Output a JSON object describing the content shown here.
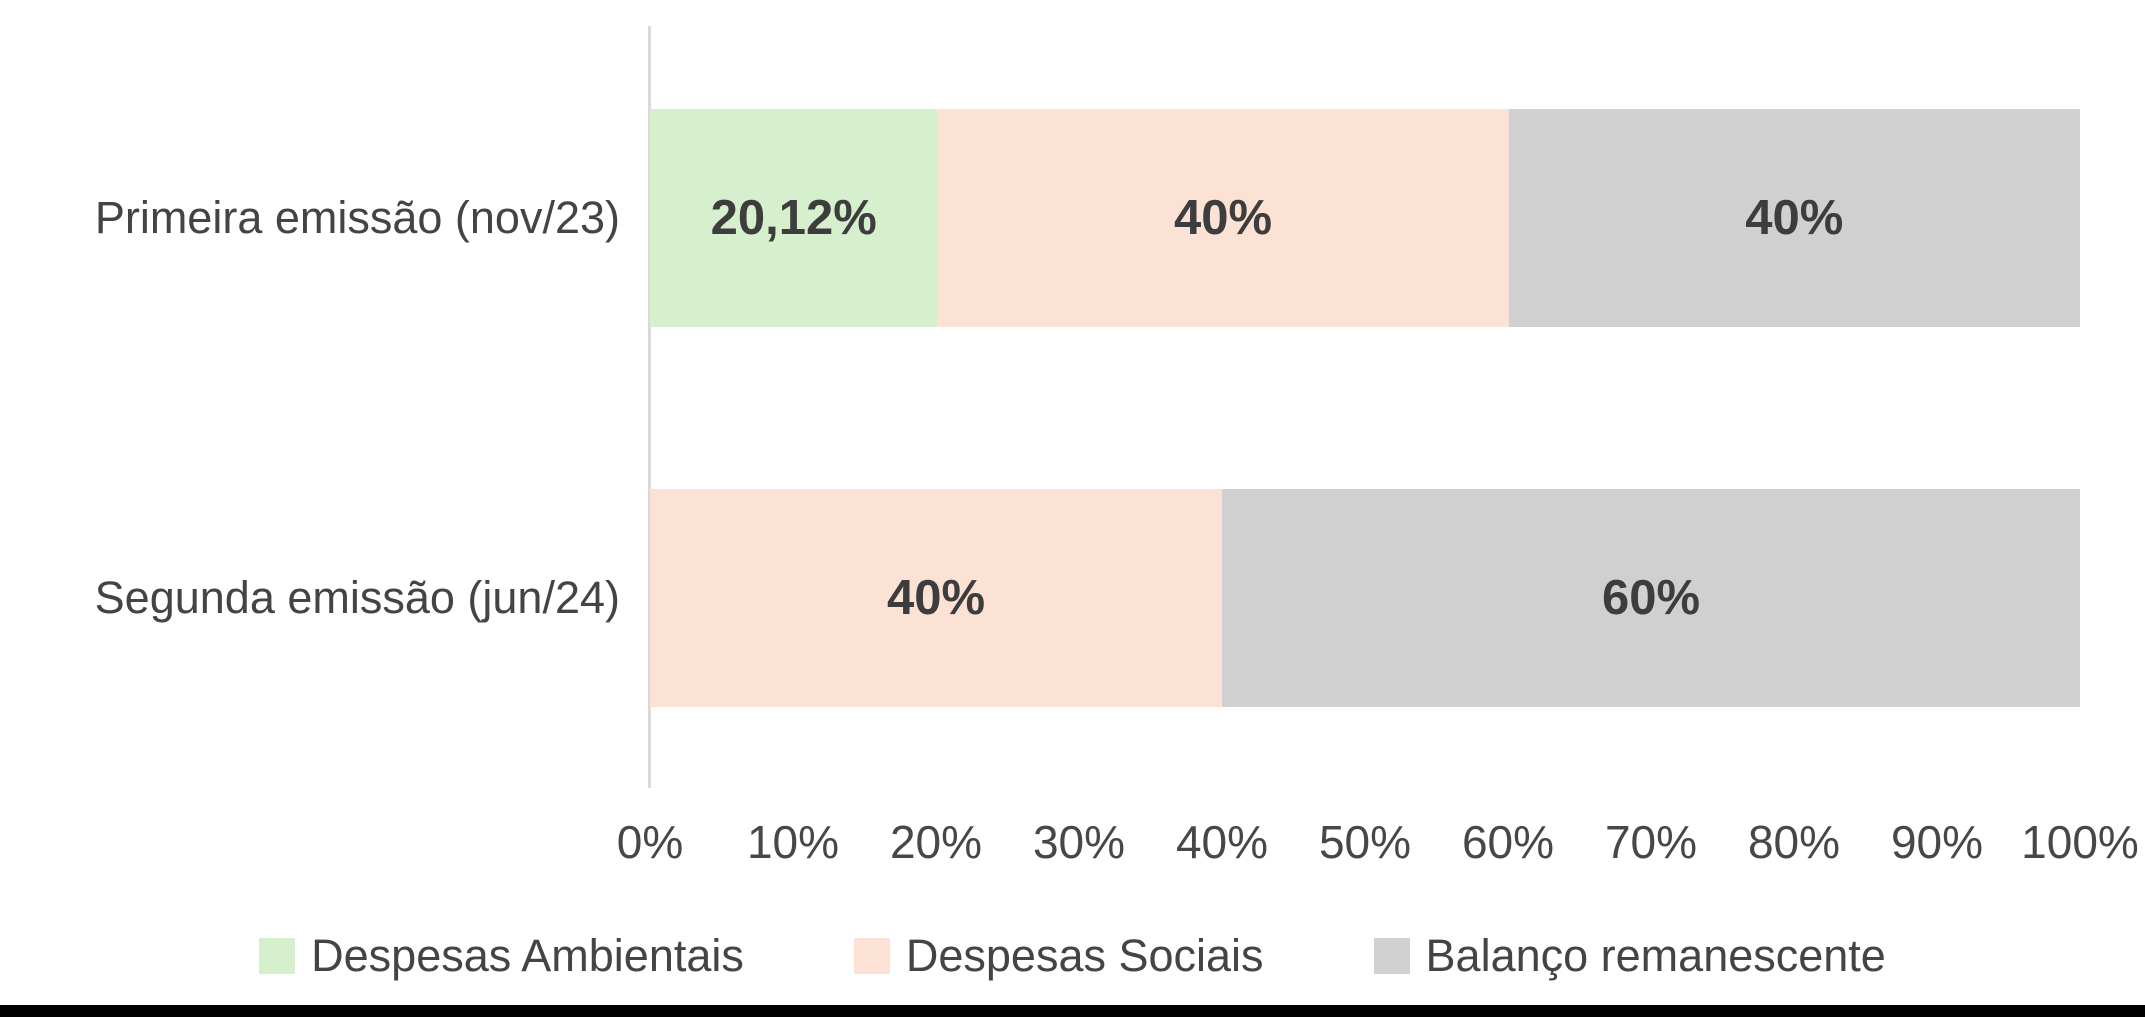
{
  "chart_data": {
    "type": "bar",
    "orientation": "horizontal",
    "stacked": true,
    "title": "",
    "categories": [
      "Primeira emissão (nov/23)",
      "Segunda emissão (jun/24)"
    ],
    "series": [
      {
        "name": "Despesas Ambientais",
        "color": "#d6f0ce",
        "values": [
          20.12,
          0
        ],
        "data_labels": [
          "20,12%",
          ""
        ]
      },
      {
        "name": "Despesas Sociais",
        "color": "#fce2d5",
        "values": [
          40,
          40
        ],
        "data_labels": [
          "40%",
          "40%"
        ]
      },
      {
        "name": "Balanço remanescente",
        "color": "#d0d0d0",
        "values": [
          40,
          60
        ],
        "data_labels": [
          "40%",
          "60%"
        ]
      }
    ],
    "x_axis": {
      "min": 0,
      "max": 100,
      "tick_labels": [
        "0%",
        "10%",
        "20%",
        "30%",
        "40%",
        "50%",
        "60%",
        "70%",
        "80%",
        "90%",
        "100%"
      ]
    },
    "legend": {
      "position": "bottom",
      "entries": [
        "Despesas Ambientais",
        "Despesas Sociais",
        "Balanço remanescente"
      ]
    },
    "grid": false
  },
  "colors": {
    "background": "#ffffff",
    "axis_line": "#d9d9d9",
    "category_label_text": "#444444",
    "tick_label_text": "#474747",
    "data_label_text": "#3d3d3d",
    "legend_text": "#444444",
    "bottom_bar": "#000000"
  }
}
